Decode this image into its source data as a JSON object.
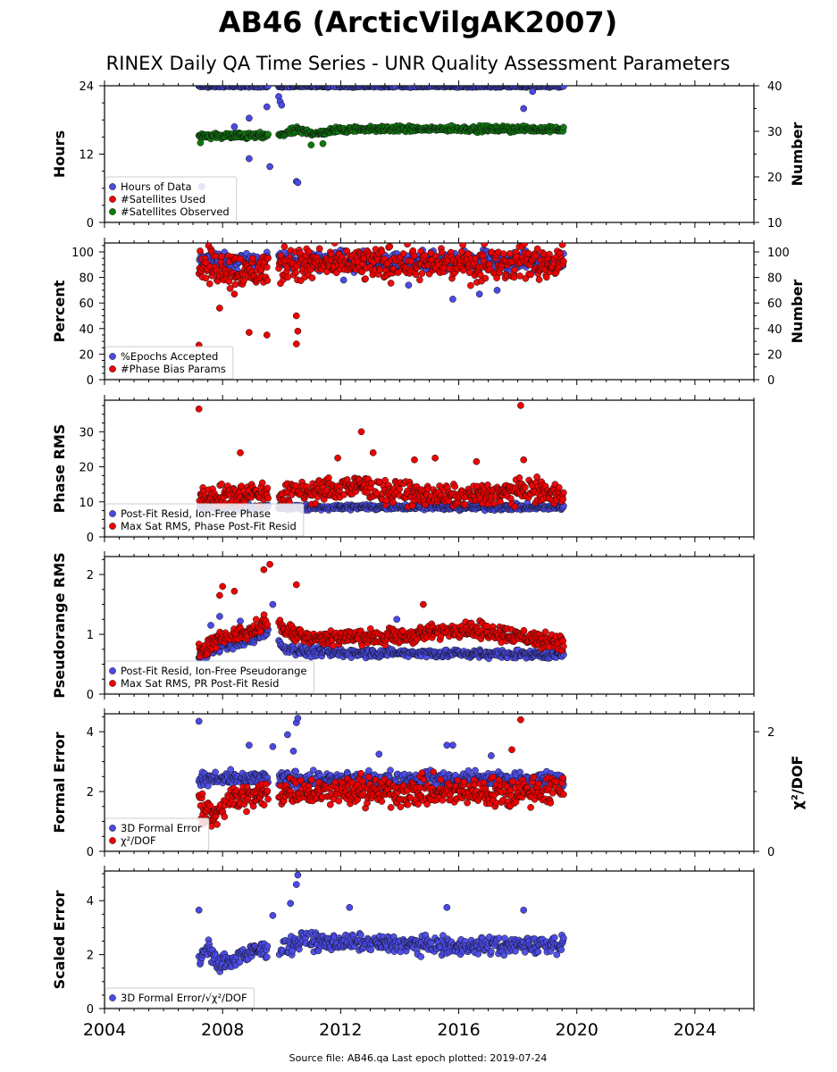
{
  "title": "AB46 (ArcticVilgAK2007)",
  "subtitle": "RINEX Daily QA Time Series - UNR Quality Assessment Parameters",
  "footer": "Source file: AB46.qa Last epoch plotted: 2019-07-24",
  "colors": {
    "blue": "#4a4ae6",
    "red": "#ee0000",
    "green": "#0e7a0e",
    "edge": "#111111"
  },
  "x_axis": {
    "range": [
      2004,
      2026
    ],
    "ticks": [
      2004,
      2008,
      2012,
      2016,
      2020,
      2024
    ]
  },
  "chart_data": [
    {
      "type": "scatter",
      "ylabel": "Hours",
      "ylabel_right": "Number",
      "ylim": [
        0,
        24
      ],
      "yticks": [
        0,
        12,
        24
      ],
      "ylim_right": [
        10,
        40
      ],
      "yticks_right": [
        10,
        20,
        30,
        40
      ],
      "legend": "bottom-left",
      "series": [
        {
          "name": "Hours of Data",
          "color": "blue",
          "axis": "left",
          "start": 2007.2,
          "end": 2019.56,
          "trend": [
            [
              2007.2,
              23.9
            ],
            [
              2019.56,
              23.9
            ]
          ],
          "noise": 0.12,
          "outliers": [
            [
              2007.3,
              6.3
            ],
            [
              2008.4,
              16.8
            ],
            [
              2008.9,
              18.3
            ],
            [
              2008.9,
              11.2
            ],
            [
              2009.5,
              20.3
            ],
            [
              2009.6,
              9.8
            ],
            [
              2009.9,
              22.1
            ],
            [
              2009.95,
              21.2
            ],
            [
              2010.0,
              20.6
            ],
            [
              2010.5,
              7.2
            ],
            [
              2010.55,
              7.0
            ],
            [
              2011.4,
              15.6
            ],
            [
              2018.2,
              20.0
            ],
            [
              2018.5,
              23.0
            ]
          ]
        },
        {
          "name": "#Satellites Used",
          "color": "red",
          "axis": "right",
          "start": 2007.2,
          "end": 2007.3,
          "trend": [
            [
              2007.2,
              29.0
            ],
            [
              2007.3,
              29.0
            ]
          ],
          "noise": 0.2,
          "outliers": []
        },
        {
          "name": "#Satellites Observed",
          "color": "green",
          "axis": "right",
          "start": 2007.2,
          "end": 2019.56,
          "trend": [
            [
              2007.2,
              29.0
            ],
            [
              2009.0,
              29.0
            ],
            [
              2009.9,
              29.0
            ],
            [
              2010.5,
              30.3
            ],
            [
              2011.2,
              29.5
            ],
            [
              2012.0,
              30.5
            ],
            [
              2019.56,
              30.5
            ]
          ],
          "noise": 0.45,
          "outliers": [
            [
              2007.25,
              27.5
            ],
            [
              2011.0,
              27.0
            ],
            [
              2011.4,
              27.3
            ]
          ]
        }
      ]
    },
    {
      "type": "scatter",
      "ylabel": "Percent",
      "ylabel_right": "Number",
      "ylim": [
        0,
        107
      ],
      "yticks": [
        0,
        20,
        40,
        60,
        80,
        100
      ],
      "ylim_right": [
        0,
        107
      ],
      "yticks_right": [
        0,
        20,
        40,
        60,
        80,
        100
      ],
      "legend": "bottom-left",
      "series": [
        {
          "name": "%Epochs Accepted",
          "color": "blue",
          "axis": "left",
          "start": 2007.2,
          "end": 2019.56,
          "trend": [
            [
              2007.2,
              93
            ],
            [
              2019.56,
              93
            ]
          ],
          "noise": 5,
          "outliers": [
            [
              2014.3,
              74
            ],
            [
              2015.8,
              63
            ],
            [
              2016.7,
              67
            ],
            [
              2017.3,
              70
            ],
            [
              2009.4,
              90
            ],
            [
              2012.1,
              78
            ]
          ]
        },
        {
          "name": "#Phase Bias Params",
          "color": "red",
          "axis": "right",
          "start": 2007.2,
          "end": 2019.56,
          "trend": [
            [
              2007.2,
              90
            ],
            [
              2009.0,
              84
            ],
            [
              2010.0,
              90
            ],
            [
              2019.56,
              91
            ]
          ],
          "noise": 9,
          "outliers": [
            [
              2007.2,
              27
            ],
            [
              2007.9,
              56
            ],
            [
              2008.4,
              67
            ],
            [
              2008.9,
              37
            ],
            [
              2009.5,
              35
            ],
            [
              2010.5,
              50
            ],
            [
              2010.55,
              38
            ],
            [
              2010.5,
              28
            ]
          ]
        }
      ]
    },
    {
      "type": "scatter",
      "ylabel": "Phase RMS",
      "ylim": [
        0,
        39
      ],
      "yticks": [
        0,
        10,
        20,
        30
      ],
      "legend": "bottom-left",
      "series": [
        {
          "name": "Post-Fit Resid, Ion-Free Phase",
          "color": "blue",
          "axis": "left",
          "start": 2007.2,
          "end": 2019.56,
          "trend": [
            [
              2007.2,
              8.5
            ],
            [
              2019.56,
              8.5
            ]
          ],
          "noise": 0.6,
          "outliers": []
        },
        {
          "name": "Max Sat RMS, Phase Post-Fit Resid",
          "color": "red",
          "axis": "left",
          "start": 2007.2,
          "end": 2019.56,
          "trend": [
            [
              2007.2,
              11.5
            ],
            [
              2009.0,
              12.5
            ],
            [
              2010.0,
              12.0
            ],
            [
              2012.5,
              14.5
            ],
            [
              2014.0,
              12.5
            ],
            [
              2016.0,
              11.5
            ],
            [
              2018.5,
              13.5
            ],
            [
              2019.56,
              12.0
            ]
          ],
          "noise": 2.2,
          "outliers": [
            [
              2007.2,
              36.5
            ],
            [
              2018.1,
              37.5
            ],
            [
              2012.7,
              30
            ],
            [
              2008.6,
              24
            ],
            [
              2013.1,
              24
            ],
            [
              2011.9,
              22.5
            ],
            [
              2014.5,
              22
            ],
            [
              2015.2,
              22.5
            ],
            [
              2016.6,
              21.5
            ],
            [
              2018.2,
              22
            ]
          ]
        }
      ]
    },
    {
      "type": "scatter",
      "ylabel": "Pseudorange RMS",
      "ylim": [
        0,
        2.3
      ],
      "yticks": [
        0,
        1,
        2
      ],
      "legend": "bottom-left",
      "series": [
        {
          "name": "Post-Fit Resid, Ion-Free Pseudorange",
          "color": "blue",
          "axis": "left",
          "start": 2007.2,
          "end": 2019.56,
          "trend": [
            [
              2007.2,
              0.62
            ],
            [
              2008.0,
              0.8
            ],
            [
              2009.0,
              0.9
            ],
            [
              2009.6,
              1.1
            ],
            [
              2010.0,
              0.78
            ],
            [
              2011.0,
              0.7
            ],
            [
              2019.56,
              0.66
            ]
          ],
          "noise": 0.05,
          "outliers": [
            [
              2007.6,
              1.15
            ],
            [
              2007.9,
              1.3
            ],
            [
              2008.6,
              1.22
            ],
            [
              2009.7,
              1.5
            ],
            [
              2013.9,
              1.25
            ]
          ]
        },
        {
          "name": "Max Sat RMS, PR Post-Fit Resid",
          "color": "red",
          "axis": "left",
          "start": 2007.2,
          "end": 2019.56,
          "trend": [
            [
              2007.2,
              0.7
            ],
            [
              2008.0,
              0.95
            ],
            [
              2009.0,
              1.05
            ],
            [
              2009.7,
              1.3
            ],
            [
              2010.0,
              1.1
            ],
            [
              2011.0,
              0.95
            ],
            [
              2014.0,
              0.95
            ],
            [
              2016.0,
              1.1
            ],
            [
              2017.0,
              1.05
            ],
            [
              2019.56,
              0.85
            ]
          ],
          "noise": 0.09,
          "outliers": [
            [
              2007.9,
              1.65
            ],
            [
              2008.0,
              1.8
            ],
            [
              2008.4,
              1.72
            ],
            [
              2009.4,
              2.08
            ],
            [
              2009.6,
              2.17
            ],
            [
              2010.5,
              1.83
            ],
            [
              2014.8,
              1.5
            ]
          ]
        }
      ]
    },
    {
      "type": "scatter",
      "ylabel": "Formal Error",
      "ylabel_right": "χ²/DOF",
      "ylim": [
        0,
        4.6
      ],
      "yticks": [
        0,
        2,
        4
      ],
      "ylim_right": [
        0,
        2.3
      ],
      "yticks_right": [
        0,
        2
      ],
      "legend": "bottom-left",
      "series": [
        {
          "name": "3D Formal Error",
          "color": "blue",
          "axis": "left",
          "start": 2007.2,
          "end": 2019.56,
          "trend": [
            [
              2007.2,
              2.4
            ],
            [
              2019.56,
              2.4
            ]
          ],
          "noise": 0.18,
          "outliers": [
            [
              2007.2,
              4.35
            ],
            [
              2008.9,
              3.55
            ],
            [
              2009.7,
              3.5
            ],
            [
              2010.2,
              3.9
            ],
            [
              2010.4,
              3.35
            ],
            [
              2010.5,
              4.3
            ],
            [
              2010.55,
              4.45
            ],
            [
              2015.6,
              3.55
            ],
            [
              2015.8,
              3.55
            ],
            [
              2013.3,
              3.25
            ],
            [
              2017.1,
              3.2
            ]
          ]
        },
        {
          "name": "χ²/DOF",
          "color": "red",
          "axis": "right",
          "start": 2007.2,
          "end": 2019.56,
          "trend": [
            [
              2007.2,
              0.85
            ],
            [
              2007.6,
              0.55
            ],
            [
              2008.2,
              0.9
            ],
            [
              2009.0,
              0.9
            ],
            [
              2010.0,
              1.0
            ],
            [
              2019.56,
              1.0
            ]
          ],
          "noise": 0.17,
          "outliers": [
            [
              2018.1,
              2.2
            ],
            [
              2017.8,
              1.7
            ],
            [
              2007.3,
              0.45
            ]
          ]
        }
      ]
    },
    {
      "type": "scatter",
      "ylabel": "Scaled Error",
      "ylim": [
        0,
        5.1
      ],
      "yticks": [
        0,
        2,
        4
      ],
      "legend": "bottom-left",
      "series": [
        {
          "name": "3D Formal Error/√χ²/DOF",
          "color": "blue",
          "axis": "left",
          "start": 2007.2,
          "end": 2019.56,
          "trend": [
            [
              2007.2,
              1.75
            ],
            [
              2007.5,
              2.4
            ],
            [
              2007.8,
              1.6
            ],
            [
              2009.0,
              2.1
            ],
            [
              2009.9,
              2.2
            ],
            [
              2010.6,
              2.5
            ],
            [
              2014.0,
              2.4
            ],
            [
              2016.0,
              2.3
            ],
            [
              2019.56,
              2.4
            ]
          ],
          "noise": 0.22,
          "outliers": [
            [
              2007.2,
              3.65
            ],
            [
              2010.5,
              4.6
            ],
            [
              2010.55,
              4.95
            ],
            [
              2010.3,
              3.9
            ],
            [
              2009.7,
              3.45
            ],
            [
              2012.3,
              3.75
            ],
            [
              2015.6,
              3.75
            ],
            [
              2018.2,
              3.65
            ]
          ]
        }
      ]
    }
  ]
}
